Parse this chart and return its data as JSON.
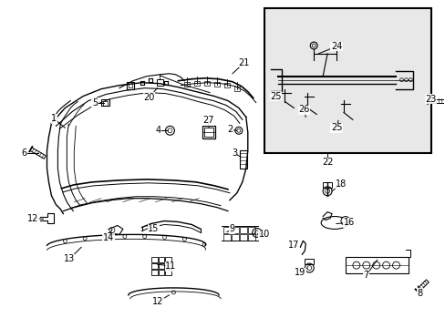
{
  "background_color": "#ffffff",
  "line_color": "#000000",
  "inset_bg": "#e8e8e8",
  "fig_width": 4.89,
  "fig_height": 3.6,
  "dpi": 100
}
